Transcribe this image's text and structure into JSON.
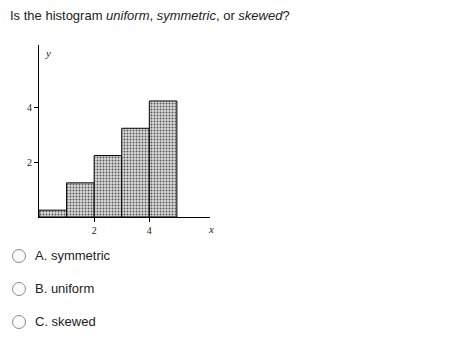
{
  "question": "Is the histogram uniform, symmetric, or skewed?",
  "emphasis": [
    "uniform",
    "symmetric",
    "skewed"
  ],
  "options": [
    "A. symmetric",
    "B. uniform",
    "C. skewed"
  ],
  "chart_data": {
    "type": "histogram",
    "x_label": "x",
    "y_label": "y",
    "bins": [
      0,
      1,
      2,
      3,
      4,
      5
    ],
    "values": [
      0.25,
      1.25,
      2.25,
      3.25,
      4.25
    ],
    "color": "#d9d9d9",
    "xlim": [
      0,
      6.2
    ],
    "xticks": [
      2,
      4
    ],
    "ylim": [
      0,
      6.3
    ],
    "yticks": [
      2,
      4
    ],
    "grid": false
  }
}
